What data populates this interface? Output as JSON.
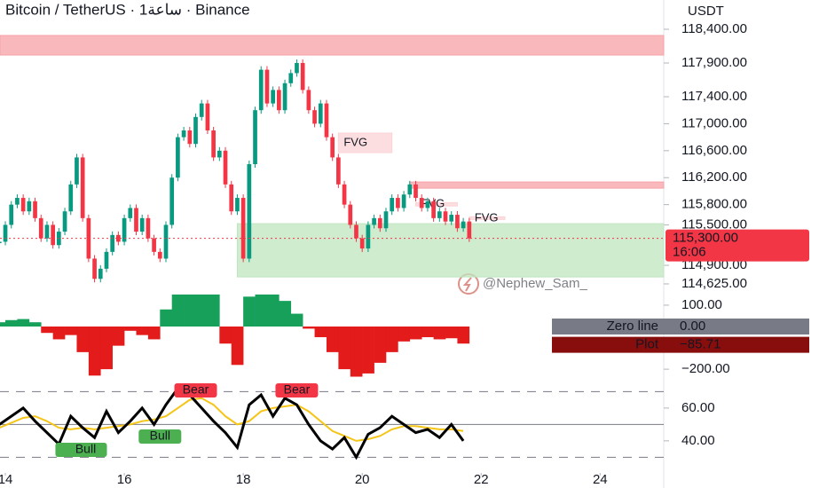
{
  "header": {
    "title": "Bitcoin / TetherUS · 1ساعة · Binance",
    "currency": "USDT",
    "watermark": "@Nephew_Sam_"
  },
  "chart_data": [
    {
      "type": "candlestick",
      "up_color": "#089981",
      "down_color": "#f23645",
      "x": [
        13.9,
        14.0,
        14.1,
        14.2,
        14.3,
        14.4,
        14.5,
        14.6,
        14.7,
        14.8,
        14.9,
        15.0,
        15.1,
        15.2,
        15.3,
        15.4,
        15.5,
        15.6,
        15.7,
        15.8,
        15.9,
        16.0,
        16.1,
        16.2,
        16.3,
        16.4,
        16.5,
        16.6,
        16.7,
        16.8,
        16.9,
        17.0,
        17.1,
        17.2,
        17.3,
        17.4,
        17.5,
        17.6,
        17.7,
        17.8,
        17.9,
        18.0,
        18.1,
        18.2,
        18.3,
        18.4,
        18.5,
        18.6,
        18.7,
        18.8,
        18.9,
        19.0,
        19.1,
        19.2,
        19.3,
        19.4,
        19.5,
        19.6,
        19.7,
        19.8,
        19.9,
        20.0,
        20.1,
        20.2,
        20.3,
        20.4,
        20.5,
        20.6,
        20.7,
        20.8,
        20.9,
        21.0,
        21.1,
        21.2,
        21.3,
        21.4,
        21.5,
        21.6,
        21.7,
        21.8
      ],
      "values": [
        115250,
        115500,
        115800,
        115900,
        115700,
        115850,
        115600,
        115300,
        115500,
        115200,
        115400,
        115700,
        116100,
        116500,
        115600,
        115000,
        114700,
        114850,
        115100,
        115350,
        115250,
        115600,
        115750,
        115400,
        115600,
        115300,
        115100,
        115000,
        115500,
        116200,
        116800,
        116900,
        116700,
        117100,
        117300,
        116900,
        116500,
        116600,
        116100,
        115700,
        115900,
        115000,
        116400,
        117200,
        117800,
        117300,
        117500,
        117200,
        117600,
        117750,
        117900,
        117500,
        117200,
        117000,
        117300,
        116800,
        116500,
        116100,
        115800,
        115500,
        115300,
        115150,
        115500,
        115600,
        115450,
        115700,
        115900,
        115750,
        115950,
        116100,
        115900,
        115750,
        115850,
        115600,
        115700,
        115550,
        115650,
        115450,
        115550,
        115300
      ],
      "xlim": [
        13.91,
        25.07
      ],
      "ylim": [
        114493,
        118505
      ],
      "yticks": [
        {
          "value": 118400,
          "label": "118,400.00"
        },
        {
          "value": 117900,
          "label": "117,900.00"
        },
        {
          "value": 117400,
          "label": "117,400.00"
        },
        {
          "value": 117000,
          "label": "117,000.00"
        },
        {
          "value": 116600,
          "label": "116,600.00"
        },
        {
          "value": 116200,
          "label": "116,200.00"
        },
        {
          "value": 115800,
          "label": "115,800.00"
        },
        {
          "value": 115500,
          "label": "115,500.00"
        },
        {
          "value": 114900,
          "label": "114,900.00"
        },
        {
          "value": 114625,
          "label": "114,625.00"
        }
      ],
      "last_price": {
        "value": 115300,
        "label": "115,300.00",
        "countdown": "16:06",
        "color": "#f23645"
      },
      "zones": [
        {
          "x0": 13.91,
          "x1": 25.07,
          "low": 118018,
          "high": 118308,
          "color": "#f7a1a6"
        },
        {
          "x0": 19.6,
          "x1": 20.5,
          "low": 116571,
          "high": 116860,
          "color": "#fbd3d6",
          "label": "FVG"
        },
        {
          "x0": 20.8,
          "x1": 25.07,
          "low": 116044,
          "high": 116136,
          "color": "#f7a1a6"
        },
        {
          "x0": 20.9,
          "x1": 21.6,
          "low": 115780,
          "high": 115830,
          "color": "#fbd3d6",
          "label": "FVG"
        },
        {
          "x0": 21.8,
          "x1": 22.4,
          "low": 115580,
          "high": 115620,
          "color": "#fbd3d6",
          "label": "FVG"
        },
        {
          "x0": 17.9,
          "x1": 25.07,
          "low": 114728,
          "high": 115518,
          "color": "#bfe6bf"
        }
      ]
    },
    {
      "type": "bar",
      "positive_color": "#16a05a",
      "negative_color": "#e31b1b",
      "x": [
        13.9,
        14.1,
        14.3,
        14.5,
        14.7,
        14.9,
        15.1,
        15.3,
        15.5,
        15.7,
        15.9,
        16.1,
        16.3,
        16.5,
        16.7,
        16.9,
        17.1,
        17.3,
        17.5,
        17.7,
        17.9,
        18.1,
        18.3,
        18.5,
        18.7,
        18.9,
        19.1,
        19.3,
        19.5,
        19.7,
        19.9,
        20.1,
        20.3,
        20.5,
        20.7,
        20.9,
        21.1,
        21.3,
        21.5,
        21.7
      ],
      "values": [
        20,
        30,
        35,
        20,
        -30,
        -60,
        -40,
        -120,
        -230,
        -200,
        -90,
        -20,
        -40,
        -60,
        80,
        150,
        150,
        150,
        150,
        -80,
        -180,
        140,
        150,
        150,
        120,
        60,
        -10,
        -50,
        -120,
        -200,
        -235,
        -220,
        -170,
        -120,
        -70,
        -60,
        -50,
        -60,
        -55,
        -80
      ],
      "xlim": [
        13.91,
        25.07
      ],
      "ylim": [
        -237,
        158
      ],
      "yticks": [
        {
          "value": 100,
          "label": "100.00"
        },
        {
          "value": -200,
          "label": "−200.00"
        }
      ],
      "markers": [
        {
          "name": "Zero line",
          "value": 0,
          "label": "0.00",
          "color": "#787b86"
        },
        {
          "name": "Plot",
          "value": -85.71,
          "label": "−85.71",
          "color": "#880e0e"
        }
      ]
    },
    {
      "type": "line",
      "x": [
        13.9,
        14.1,
        14.3,
        14.5,
        14.7,
        14.9,
        15.1,
        15.3,
        15.5,
        15.7,
        15.9,
        16.1,
        16.3,
        16.5,
        16.7,
        16.9,
        17.1,
        17.3,
        17.5,
        17.7,
        17.9,
        18.1,
        18.3,
        18.5,
        18.7,
        18.9,
        19.1,
        19.3,
        19.5,
        19.7,
        19.9,
        20.1,
        20.3,
        20.5,
        20.7,
        20.9,
        21.1,
        21.3,
        21.5,
        21.7
      ],
      "series": [
        {
          "color": "#000000",
          "values": [
            50,
            55,
            60,
            52,
            45,
            38,
            55,
            48,
            42,
            58,
            45,
            52,
            60,
            50,
            62,
            72,
            68,
            60,
            52,
            45,
            36,
            62,
            68,
            55,
            66,
            62,
            50,
            40,
            35,
            42,
            30,
            44,
            48,
            55,
            50,
            45,
            47,
            42,
            50,
            40
          ]
        },
        {
          "color": "#f5c518",
          "values": [
            48,
            51,
            54,
            55,
            52,
            48,
            47,
            48,
            47,
            48,
            49,
            50,
            52,
            53,
            55,
            60,
            65,
            66,
            62,
            55,
            50,
            52,
            58,
            60,
            61,
            62,
            58,
            52,
            46,
            43,
            40,
            41,
            43,
            47,
            49,
            49,
            48,
            47,
            47,
            46
          ]
        }
      ],
      "xlim": [
        13.91,
        25.07
      ],
      "ylim": [
        21,
        74
      ],
      "levels": [
        70,
        50,
        30
      ],
      "yticks": [
        {
          "value": 60,
          "label": "60.00"
        },
        {
          "value": 40,
          "label": "40.00"
        }
      ],
      "xticks": [
        14,
        16,
        18,
        20,
        22,
        24
      ],
      "signals": [
        {
          "x": 17.2,
          "label": "Bear",
          "color": "#f23645"
        },
        {
          "x": 18.9,
          "label": "Bear",
          "color": "#f23645"
        },
        {
          "x": 15.2,
          "label": "Bull",
          "color": "#4caf50"
        },
        {
          "x": 15.35,
          "label": "Bull",
          "color": "#4caf50"
        },
        {
          "x": 16.6,
          "label": "Bull",
          "color": "#4caf50"
        }
      ]
    }
  ]
}
